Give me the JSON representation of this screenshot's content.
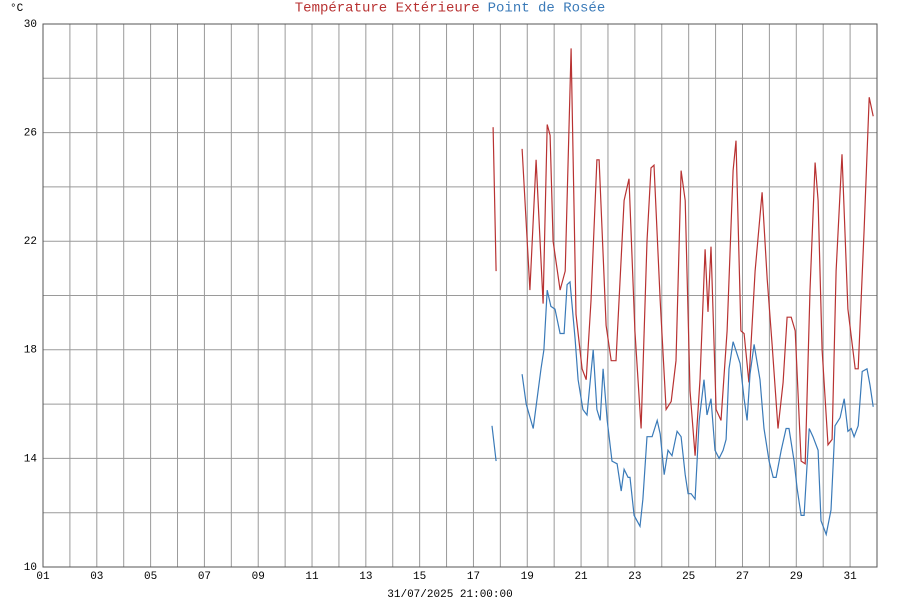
{
  "chart_data": {
    "type": "line",
    "y_unit": "°C",
    "x_label": "31/07/2025 21:00:00",
    "xlim": [
      1,
      32
    ],
    "ylim": [
      10,
      30
    ],
    "xticks": [
      {
        "value": 1,
        "label": "01"
      },
      {
        "value": 3,
        "label": "03"
      },
      {
        "value": 5,
        "label": "05"
      },
      {
        "value": 7,
        "label": "07"
      },
      {
        "value": 9,
        "label": "09"
      },
      11,
      13,
      15,
      17,
      19,
      21,
      23,
      25,
      27,
      29,
      31
    ],
    "xminor": [
      2,
      4,
      6,
      8,
      10,
      12,
      14,
      16,
      18,
      20,
      22,
      24,
      26,
      28,
      30,
      32
    ],
    "yticks": [
      10,
      14,
      18,
      22,
      26,
      30
    ],
    "yminor": [
      12,
      16,
      20,
      24,
      28
    ],
    "grid": true,
    "series": [
      {
        "name": "Température Extérieure",
        "color": "#b83232",
        "x": [
          17.73,
          17.84,
          null,
          18.81,
          19.1,
          19.33,
          19.59,
          19.74,
          19.85,
          19.96,
          20.22,
          20.41,
          20.63,
          20.81,
          21.04,
          21.19,
          21.37,
          21.59,
          21.67,
          21.93,
          22.12,
          22.3,
          22.6,
          22.78,
          23.0,
          23.23,
          23.45,
          23.6,
          23.71,
          23.94,
          24.16,
          24.35,
          24.53,
          24.72,
          24.87,
          25.05,
          25.24,
          25.42,
          25.61,
          25.72,
          25.83,
          26.02,
          26.2,
          26.43,
          26.65,
          26.76,
          26.94,
          27.06,
          27.24,
          27.47,
          27.73,
          27.92,
          28.1,
          28.32,
          28.51,
          28.66,
          28.81,
          28.96,
          29.18,
          29.33,
          29.51,
          29.7,
          29.81,
          29.96,
          30.18,
          30.33,
          30.48,
          30.7,
          30.92,
          31.19,
          31.3,
          31.52,
          31.71,
          31.86
        ],
        "values": [
          26.2,
          20.9,
          null,
          25.4,
          20.2,
          25.0,
          19.7,
          26.3,
          25.9,
          22.0,
          20.2,
          20.9,
          29.1,
          19.3,
          17.3,
          16.9,
          19.8,
          25.0,
          25.0,
          18.9,
          17.6,
          17.6,
          23.5,
          24.3,
          18.7,
          15.1,
          22.0,
          24.7,
          24.8,
          19.8,
          15.8,
          16.1,
          17.6,
          24.6,
          23.5,
          16.5,
          14.1,
          16.9,
          21.7,
          19.4,
          21.8,
          15.8,
          15.4,
          18.7,
          24.6,
          25.7,
          18.7,
          18.6,
          16.8,
          20.9,
          23.8,
          20.6,
          18.2,
          15.1,
          16.8,
          19.2,
          19.2,
          18.7,
          13.9,
          13.8,
          20.2,
          24.9,
          23.5,
          18.0,
          14.5,
          14.7,
          20.9,
          25.2,
          19.5,
          17.3,
          17.3,
          22.4,
          27.3,
          26.6
        ]
      },
      {
        "name": "Point de Rosée",
        "color": "#3a7ab8",
        "x": [
          17.69,
          17.84,
          null,
          18.81,
          18.96,
          19.22,
          19.51,
          19.62,
          19.74,
          19.88,
          20.03,
          20.22,
          20.37,
          20.48,
          20.59,
          20.78,
          20.89,
          21.07,
          21.22,
          21.45,
          21.59,
          21.71,
          21.82,
          21.97,
          22.15,
          22.34,
          22.49,
          22.6,
          22.75,
          22.82,
          22.97,
          23.19,
          23.3,
          23.45,
          23.64,
          23.83,
          23.94,
          24.09,
          24.23,
          24.38,
          24.57,
          24.72,
          24.87,
          24.98,
          25.09,
          25.24,
          25.39,
          25.57,
          25.68,
          25.83,
          25.98,
          26.13,
          26.28,
          26.39,
          26.5,
          26.65,
          26.91,
          27.06,
          27.17,
          27.28,
          27.43,
          27.65,
          27.8,
          27.99,
          28.14,
          28.25,
          28.44,
          28.62,
          28.73,
          28.92,
          29.03,
          29.18,
          29.29,
          29.48,
          29.62,
          29.81,
          29.92,
          30.11,
          30.29,
          30.44,
          30.63,
          30.78,
          30.92,
          31.04,
          31.15,
          31.3,
          31.45,
          31.63,
          31.74,
          31.86
        ],
        "values": [
          15.2,
          13.9,
          null,
          17.1,
          16.0,
          15.1,
          17.3,
          18.0,
          20.2,
          19.6,
          19.5,
          18.6,
          18.6,
          20.4,
          20.5,
          18.4,
          16.9,
          15.8,
          15.6,
          18.0,
          15.8,
          15.4,
          17.3,
          15.4,
          13.9,
          13.8,
          12.8,
          13.6,
          13.3,
          13.3,
          11.9,
          11.5,
          12.5,
          14.8,
          14.8,
          15.4,
          14.9,
          13.4,
          14.3,
          14.1,
          15.0,
          14.8,
          13.4,
          12.7,
          12.7,
          12.5,
          15.4,
          16.9,
          15.6,
          16.2,
          14.3,
          14.0,
          14.3,
          14.7,
          17.3,
          18.3,
          17.5,
          16.2,
          15.4,
          17.1,
          18.2,
          16.9,
          15.1,
          13.9,
          13.3,
          13.3,
          14.3,
          15.1,
          15.1,
          13.9,
          12.9,
          11.9,
          11.9,
          15.1,
          14.8,
          14.3,
          11.7,
          11.2,
          12.1,
          15.2,
          15.5,
          16.2,
          15.0,
          15.1,
          14.8,
          15.2,
          17.2,
          17.3,
          16.7,
          15.9
        ]
      }
    ]
  }
}
